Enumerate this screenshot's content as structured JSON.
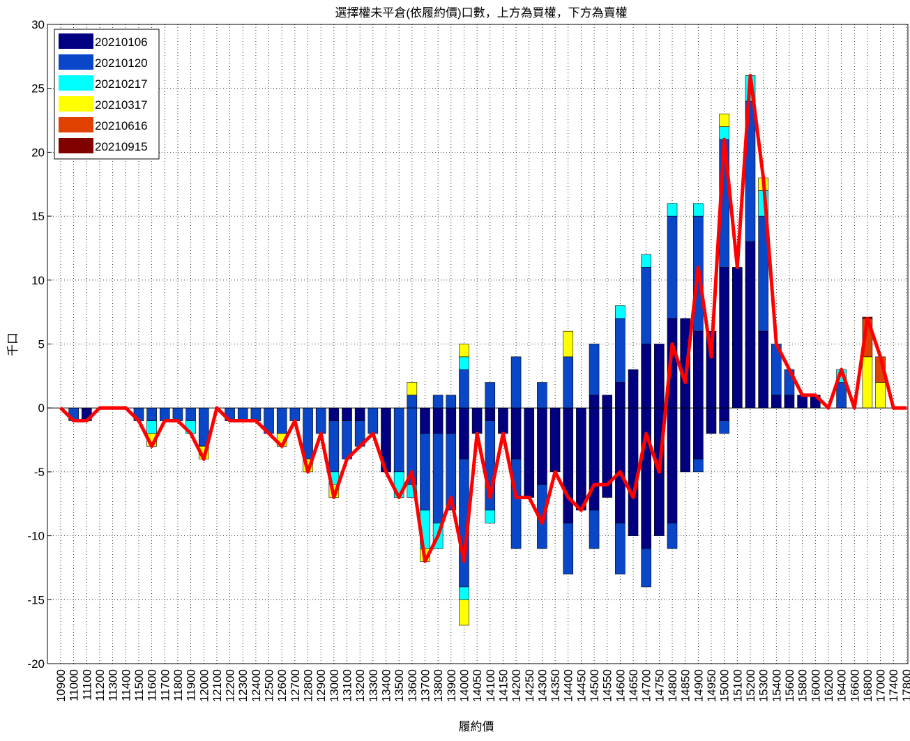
{
  "chart_data": {
    "type": "bar",
    "title": "選擇權未平倉(依履約價)口數，上方為買權，下方為賣權",
    "xlabel": "履約價",
    "ylabel": "千口",
    "categories": [
      "10900",
      "11000",
      "11100",
      "11200",
      "11300",
      "11400",
      "11500",
      "11600",
      "11700",
      "11800",
      "11900",
      "12000",
      "12100",
      "12200",
      "12300",
      "12400",
      "12500",
      "12600",
      "12700",
      "12800",
      "12900",
      "13000",
      "13100",
      "13200",
      "13300",
      "13400",
      "13500",
      "13600",
      "13700",
      "13800",
      "13900",
      "14000",
      "14050",
      "14100",
      "14150",
      "14200",
      "14250",
      "14300",
      "14350",
      "14400",
      "14450",
      "14500",
      "14550",
      "14600",
      "14650",
      "14700",
      "14750",
      "14800",
      "14850",
      "14900",
      "14950",
      "15000",
      "15100",
      "15200",
      "15300",
      "15400",
      "15600",
      "15800",
      "16000",
      "16200",
      "16400",
      "16600",
      "16800",
      "17000",
      "17400",
      "17800"
    ],
    "series": [
      {
        "name": "20210106",
        "color": "#000080",
        "calls": [
          0,
          0,
          0,
          0,
          0,
          0,
          0,
          0,
          0,
          0,
          0,
          0,
          0,
          0,
          0,
          0,
          0,
          0,
          0,
          0,
          0,
          0,
          0,
          0,
          0,
          0,
          0,
          0,
          0,
          0,
          0,
          0,
          0,
          0,
          0,
          0,
          0,
          0,
          0,
          0,
          0,
          1,
          1,
          2,
          3,
          5,
          5,
          7,
          7,
          6,
          6,
          11,
          11,
          13,
          6,
          1,
          1,
          1,
          1,
          0,
          0,
          0,
          0,
          0,
          0,
          0
        ],
        "puts": [
          0,
          0,
          -1,
          0,
          0,
          0,
          0,
          0,
          0,
          0,
          0,
          0,
          0,
          0,
          0,
          0,
          0,
          0,
          0,
          0,
          0,
          -1,
          -1,
          -1,
          0,
          -5,
          0,
          0,
          -2,
          -2,
          -2,
          -4,
          -2,
          -1,
          -2,
          -4,
          -7,
          -6,
          -5,
          -9,
          -8,
          -8,
          -7,
          -9,
          -10,
          -11,
          -10,
          -9,
          -5,
          -4,
          -2,
          -1,
          0,
          0,
          0,
          0,
          0,
          0,
          0,
          0,
          0,
          0,
          0,
          0,
          0,
          0
        ]
      },
      {
        "name": "20210120",
        "color": "#0a46c8",
        "calls": [
          0,
          0,
          0,
          0,
          0,
          0,
          0,
          0,
          0,
          0,
          0,
          0,
          0,
          0,
          0,
          0,
          0,
          0,
          0,
          0,
          0,
          0,
          0,
          0,
          0,
          0,
          0,
          1,
          0,
          1,
          1,
          3,
          0,
          2,
          0,
          4,
          0,
          2,
          0,
          4,
          0,
          4,
          0,
          5,
          0,
          6,
          0,
          8,
          0,
          9,
          0,
          10,
          0,
          11,
          9,
          4,
          2,
          0,
          0,
          0,
          2,
          0,
          0,
          0,
          0,
          0
        ],
        "puts": [
          0,
          -1,
          0,
          0,
          0,
          0,
          -1,
          -1,
          -1,
          -1,
          -1,
          -3,
          0,
          -1,
          -1,
          -1,
          -2,
          -2,
          -1,
          -4,
          -2,
          -4,
          -3,
          -2,
          -2,
          0,
          -5,
          -6,
          -6,
          -7,
          -6,
          -10,
          0,
          -7,
          0,
          -7,
          0,
          -5,
          0,
          -4,
          0,
          -3,
          0,
          -4,
          0,
          -3,
          0,
          -2,
          0,
          -1,
          0,
          -1,
          0,
          0,
          0,
          0,
          0,
          0,
          0,
          0,
          0,
          0,
          0,
          0,
          0,
          0
        ]
      },
      {
        "name": "20210217",
        "color": "#00ffff",
        "calls": [
          0,
          0,
          0,
          0,
          0,
          0,
          0,
          0,
          0,
          0,
          0,
          0,
          0,
          0,
          0,
          0,
          0,
          0,
          0,
          0,
          0,
          0,
          0,
          0,
          0,
          0,
          0,
          0,
          0,
          0,
          0,
          1,
          0,
          0,
          0,
          0,
          0,
          0,
          0,
          0,
          0,
          0,
          0,
          1,
          0,
          1,
          0,
          1,
          0,
          1,
          0,
          1,
          0,
          2,
          2,
          0,
          0,
          0,
          0,
          0,
          1,
          0,
          0,
          0,
          0,
          0
        ],
        "puts": [
          0,
          0,
          0,
          0,
          0,
          0,
          0,
          -1,
          0,
          0,
          -1,
          0,
          0,
          0,
          0,
          0,
          0,
          0,
          0,
          0,
          0,
          -1,
          0,
          0,
          0,
          0,
          -2,
          -1,
          -3,
          -2,
          0,
          -1,
          0,
          -1,
          0,
          0,
          0,
          0,
          0,
          0,
          0,
          0,
          0,
          0,
          0,
          0,
          0,
          0,
          0,
          0,
          0,
          0,
          0,
          0,
          0,
          0,
          0,
          0,
          0,
          0,
          0,
          0,
          0,
          0,
          0,
          0
        ]
      },
      {
        "name": "20210317",
        "color": "#ffff00",
        "calls": [
          0,
          0,
          0,
          0,
          0,
          0,
          0,
          0,
          0,
          0,
          0,
          0,
          0,
          0,
          0,
          0,
          0,
          0,
          0,
          0,
          0,
          0,
          0,
          0,
          0,
          0,
          0,
          1,
          0,
          0,
          0,
          1,
          0,
          0,
          0,
          0,
          0,
          0,
          0,
          2,
          0,
          0,
          0,
          0,
          0,
          0,
          0,
          0,
          0,
          0,
          0,
          1,
          0,
          0,
          1,
          0,
          0,
          0,
          0,
          0,
          0,
          0,
          4,
          2,
          0,
          0
        ],
        "puts": [
          0,
          0,
          0,
          0,
          0,
          0,
          0,
          -1,
          0,
          0,
          0,
          -1,
          0,
          0,
          0,
          0,
          0,
          -1,
          0,
          -1,
          0,
          -1,
          0,
          0,
          0,
          0,
          0,
          0,
          -1,
          0,
          0,
          -2,
          0,
          0,
          0,
          0,
          0,
          0,
          0,
          0,
          0,
          0,
          0,
          0,
          0,
          0,
          0,
          0,
          0,
          0,
          0,
          0,
          0,
          0,
          0,
          0,
          0,
          0,
          0,
          0,
          0,
          0,
          0,
          0,
          0,
          0
        ]
      },
      {
        "name": "20210616",
        "color": "#e04000",
        "calls": [
          0,
          0,
          0,
          0,
          0,
          0,
          0,
          0,
          0,
          0,
          0,
          0,
          0,
          0,
          0,
          0,
          0,
          0,
          0,
          0,
          0,
          0,
          0,
          0,
          0,
          0,
          0,
          0,
          0,
          0,
          0,
          0,
          0,
          0,
          0,
          0,
          0,
          0,
          0,
          0,
          0,
          0,
          0,
          0,
          0,
          0,
          0,
          0,
          0,
          0,
          0,
          0,
          0,
          0,
          0,
          0,
          0,
          0,
          0,
          0,
          0,
          0,
          3,
          2,
          0,
          0
        ],
        "puts": [
          0,
          0,
          0,
          0,
          0,
          0,
          0,
          0,
          0,
          0,
          0,
          0,
          0,
          0,
          0,
          0,
          0,
          0,
          0,
          0,
          0,
          0,
          0,
          0,
          0,
          0,
          0,
          0,
          0,
          0,
          0,
          0,
          0,
          0,
          0,
          0,
          0,
          0,
          0,
          0,
          0,
          0,
          0,
          0,
          0,
          0,
          0,
          0,
          0,
          0,
          0,
          0,
          0,
          0,
          0,
          0,
          0,
          0,
          0,
          0,
          0,
          0,
          0,
          0,
          0,
          0
        ]
      },
      {
        "name": "20210915",
        "color": "#800000",
        "calls": [
          0,
          0,
          0,
          0,
          0,
          0,
          0,
          0,
          0,
          0,
          0,
          0,
          0,
          0,
          0,
          0,
          0,
          0,
          0,
          0,
          0,
          0,
          0,
          0,
          0,
          0,
          0,
          0,
          0,
          0,
          0,
          0,
          0,
          0,
          0,
          0,
          0,
          0,
          0,
          0,
          0,
          0,
          0,
          0,
          0,
          0,
          0,
          0,
          0,
          0,
          0,
          0,
          0,
          0,
          0,
          0,
          0,
          0,
          0,
          0,
          0,
          0,
          0.1,
          0,
          0,
          0
        ],
        "puts": [
          0,
          0,
          0,
          0,
          0,
          0,
          0,
          0,
          0,
          0,
          0,
          0,
          0,
          0,
          0,
          0,
          0,
          0,
          0,
          0,
          0,
          0,
          0,
          0,
          0,
          0,
          0,
          0,
          0,
          0,
          0,
          0,
          0,
          0,
          0,
          0,
          0,
          0,
          0,
          0,
          0,
          0,
          0,
          0,
          0,
          0,
          0,
          0,
          0,
          0,
          0,
          0,
          0,
          0,
          0,
          0,
          0,
          0,
          0,
          0,
          0,
          0,
          0,
          0,
          0,
          0
        ]
      }
    ],
    "line": {
      "color": "#ff0000",
      "values": [
        0,
        -1,
        -1,
        0,
        0,
        0,
        -1,
        -3,
        -1,
        -1,
        -2,
        -4,
        0,
        -1,
        -1,
        -1,
        -2,
        -3,
        -1,
        -5,
        -2,
        -7,
        -4,
        -3,
        -2,
        -5,
        -7,
        -5,
        -12,
        -10,
        -7,
        -12,
        -2,
        -7,
        -2,
        -7,
        -7,
        -9,
        -5,
        -7,
        -8,
        -6,
        -6,
        -5,
        -7,
        -2,
        -5,
        5,
        2,
        11,
        4,
        21,
        11,
        26,
        18,
        5,
        3,
        1,
        1,
        0,
        3,
        0,
        7,
        4,
        0,
        0
      ]
    },
    "ylim": [
      -20,
      30
    ],
    "yticks": [
      -20,
      -15,
      -10,
      -5,
      0,
      5,
      10,
      15,
      20,
      25,
      30
    ],
    "grid": true,
    "legend": "upper left"
  }
}
